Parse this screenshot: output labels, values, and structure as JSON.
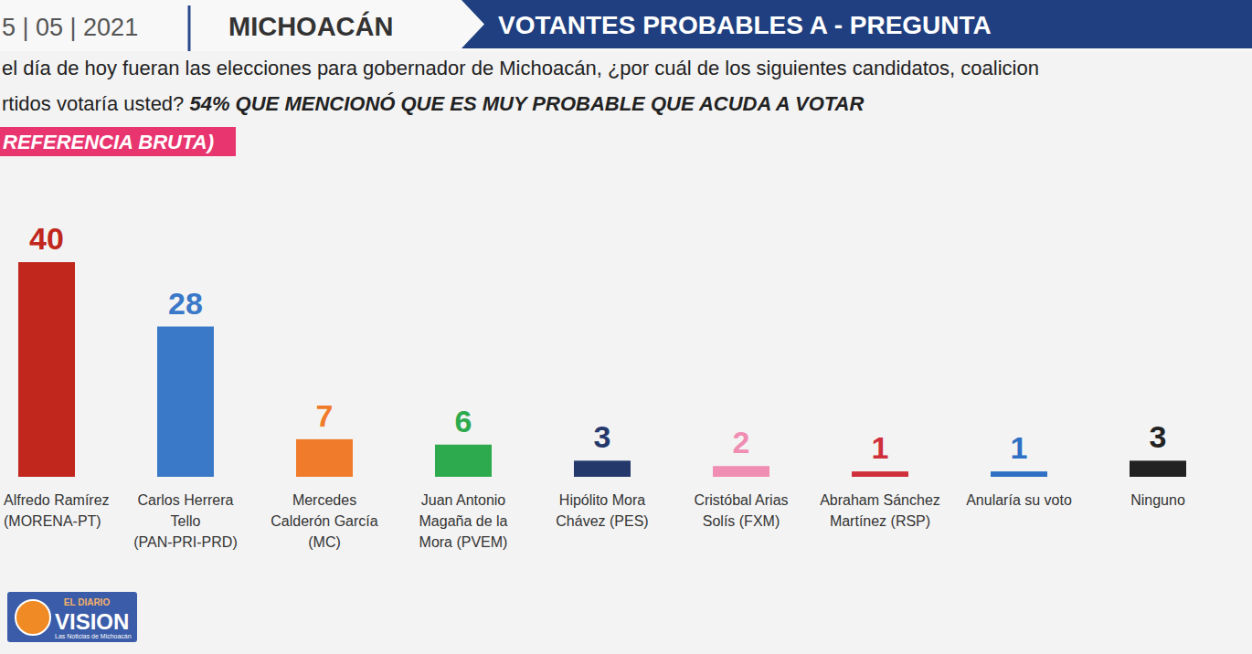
{
  "header": {
    "date": "5 | 05 | 2021",
    "state": "MICHOACÁN",
    "banner": "VOTANTES PROBABLES A - PREGUNTA"
  },
  "logo": {
    "top": "EL DIARIO",
    "name": "VISION",
    "tagline": "Las Noticias de Michoacán"
  },
  "chart_data": {
    "type": "bar",
    "title": [
      "el día de hoy fueran las elecciones para gobernador de Michoacán, ¿por cuál de los siguientes candidatos, coalicion",
      "rtidos votaría usted?"
    ],
    "subtitle": "54% QUE MENCIONÓ QUE ES MUY PROBABLE QUE ACUDA A VOTAR",
    "annotation": "REFERENCIA BRUTA)",
    "categories": [
      "Alfredo Ramírez (MORENA-PT)",
      "Carlos Herrera Tello (PAN-PRI-PRD)",
      "Mercedes Calderón García (MC)",
      "Juan Antonio Magaña de la Mora (PVEM)",
      "Hipólito Mora Chávez (PES)",
      "Cristóbal Arias Solís (FXM)",
      "Abraham Sánchez Martínez (RSP)",
      "Anularía su voto",
      "Ninguno"
    ],
    "values": [
      40,
      28,
      7,
      6,
      3,
      2,
      1,
      1,
      3
    ],
    "colors": [
      "#c1271d",
      "#3a78c8",
      "#f07b2b",
      "#2eaa4e",
      "#24386b",
      "#f08db2",
      "#cf2f3a",
      "#2e70c4",
      "#222222"
    ],
    "ylim": [
      0,
      40
    ],
    "grid": false,
    "tick_labels": false,
    "data_labels": true
  }
}
